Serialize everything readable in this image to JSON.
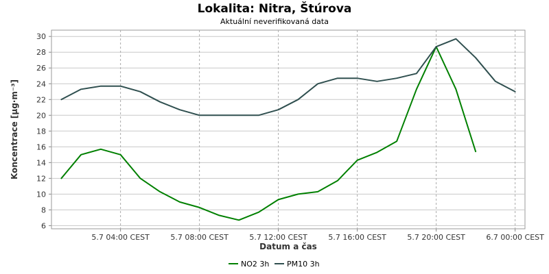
{
  "chart_data": {
    "type": "line",
    "title": "Lokalita: Nitra, Štúrova",
    "subtitle": "Aktuální neverifikovaná data",
    "xlabel": "Datum a čas",
    "ylabel": "Koncentrace [µg·m⁻³]",
    "ylim": [
      5.6,
      30.8
    ],
    "y_ticks": [
      6,
      8,
      10,
      12,
      14,
      16,
      18,
      20,
      22,
      24,
      26,
      28,
      30
    ],
    "x_hours": [
      1,
      2,
      3,
      4,
      5,
      6,
      7,
      8,
      9,
      10,
      11,
      12,
      13,
      14,
      15,
      16,
      17,
      18,
      19,
      20,
      21,
      22,
      23,
      24
    ],
    "xlim_hours": [
      0.5,
      24.5
    ],
    "x_ticks": [
      {
        "hour": 4,
        "label": "5.7 04:00 CEST"
      },
      {
        "hour": 8,
        "label": "5.7 08:00 CEST"
      },
      {
        "hour": 12,
        "label": "5.7 12:00 CEST"
      },
      {
        "hour": 16,
        "label": "5.7 16:00 CEST"
      },
      {
        "hour": 20,
        "label": "5.7 20:00 CEST"
      },
      {
        "hour": 24,
        "label": "6.7 00:00 CEST"
      }
    ],
    "grid": true,
    "legend_position": "bottom-center",
    "series": [
      {
        "name": "NO2 3h",
        "color": "#008000",
        "values": [
          12.0,
          15.0,
          15.7,
          15.0,
          12.0,
          10.3,
          9.0,
          8.3,
          7.3,
          6.7,
          7.7,
          9.3,
          10.0,
          10.3,
          11.7,
          14.3,
          15.3,
          16.7,
          23.3,
          28.7,
          23.3,
          15.4,
          null,
          null
        ]
      },
      {
        "name": "PM10 3h",
        "color": "#2f4f4f",
        "values": [
          22.0,
          23.3,
          23.7,
          23.7,
          23.0,
          21.7,
          20.7,
          20.0,
          20.0,
          20.0,
          20.0,
          20.7,
          22.0,
          24.0,
          24.7,
          24.7,
          24.3,
          24.7,
          25.3,
          28.7,
          29.7,
          27.3,
          24.3,
          23.0
        ]
      }
    ]
  }
}
